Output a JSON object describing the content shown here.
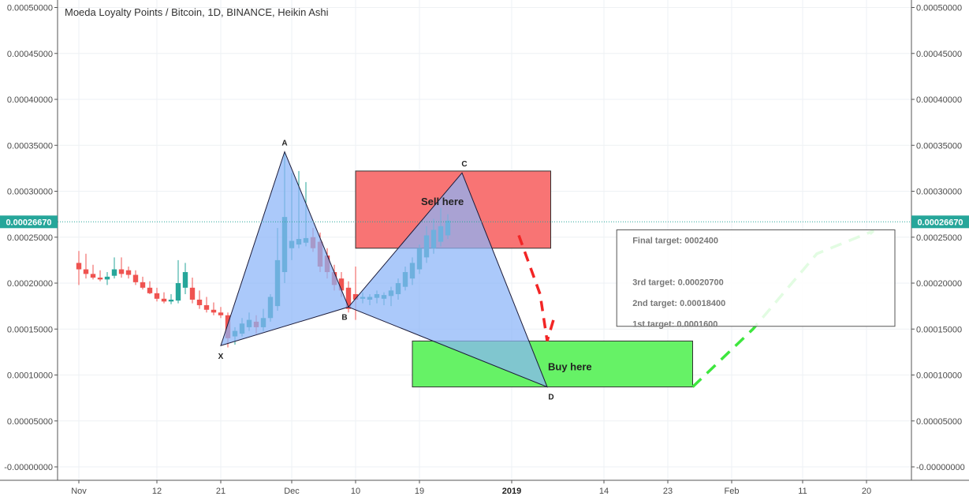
{
  "chart_data": {
    "type": "candlestick",
    "title": "Moeda Loyalty Points / Bitcoin, 1D, BINANCE, Heikin Ashi",
    "ylim": [
      -2e-07,
      0.0005
    ],
    "y_ticks": [
      "0.00050000",
      "0.00045000",
      "0.00040000",
      "0.00035000",
      "0.00030000",
      "0.00025000",
      "0.00020000",
      "0.00015000",
      "0.00010000",
      "0.00005000",
      "-0.00000000"
    ],
    "y_tick_values": [
      0.0005,
      0.00045,
      0.0004,
      0.00035,
      0.0003,
      0.00025,
      0.0002,
      0.00015,
      0.0001,
      5e-05,
      0
    ],
    "x_ticks": [
      {
        "label": "Nov",
        "day": 0,
        "bold": false
      },
      {
        "label": "12",
        "day": 11,
        "bold": false
      },
      {
        "label": "21",
        "day": 20,
        "bold": false
      },
      {
        "label": "Dec",
        "day": 30,
        "bold": false
      },
      {
        "label": "10",
        "day": 39,
        "bold": false
      },
      {
        "label": "19",
        "day": 48,
        "bold": false
      },
      {
        "label": "2019",
        "day": 61,
        "bold": true
      },
      {
        "label": "14",
        "day": 74,
        "bold": false
      },
      {
        "label": "23",
        "day": 83,
        "bold": false
      },
      {
        "label": "Feb",
        "day": 92,
        "bold": false
      },
      {
        "label": "11",
        "day": 102,
        "bold": false
      },
      {
        "label": "20",
        "day": 111,
        "bold": false
      }
    ],
    "current_price": {
      "label": "0.00026670",
      "value": 0.0002667,
      "color": "#26a69a"
    },
    "colors": {
      "up": "#26a69a",
      "down": "#ef5350",
      "pattern": "#8ab4f8",
      "sell_zone": "#f87474",
      "buy_zone": "#66f266",
      "red_arrow": "#f22525",
      "green_arrow": "#3ee63e"
    },
    "candles": [
      {
        "o": 0.000222,
        "h": 0.000235,
        "l": 0.000198,
        "c": 0.000215
      },
      {
        "o": 0.000215,
        "h": 0.000232,
        "l": 0.000205,
        "c": 0.00021
      },
      {
        "o": 0.00021,
        "h": 0.00022,
        "l": 0.000204,
        "c": 0.000206
      },
      {
        "o": 0.000206,
        "h": 0.000214,
        "l": 0.000202,
        "c": 0.000204
      },
      {
        "o": 0.000204,
        "h": 0.000212,
        "l": 0.000198,
        "c": 0.000207
      },
      {
        "o": 0.000208,
        "h": 0.000228,
        "l": 0.000205,
        "c": 0.000215
      },
      {
        "o": 0.000215,
        "h": 0.000228,
        "l": 0.000206,
        "c": 0.00021
      },
      {
        "o": 0.000214,
        "h": 0.000218,
        "l": 0.000205,
        "c": 0.000209
      },
      {
        "o": 0.000209,
        "h": 0.000214,
        "l": 0.000198,
        "c": 0.000201
      },
      {
        "o": 0.000201,
        "h": 0.000207,
        "l": 0.000193,
        "c": 0.000195
      },
      {
        "o": 0.000195,
        "h": 0.000202,
        "l": 0.000188,
        "c": 0.000189
      },
      {
        "o": 0.000189,
        "h": 0.000195,
        "l": 0.00018,
        "c": 0.000183
      },
      {
        "o": 0.000183,
        "h": 0.00019,
        "l": 0.000178,
        "c": 0.00018
      },
      {
        "o": 0.00018,
        "h": 0.000188,
        "l": 0.000177,
        "c": 0.000182
      },
      {
        "o": 0.000181,
        "h": 0.000225,
        "l": 0.000178,
        "c": 0.0002
      },
      {
        "o": 0.000195,
        "h": 0.000222,
        "l": 0.000188,
        "c": 0.000212
      },
      {
        "o": 0.000195,
        "h": 0.000206,
        "l": 0.000178,
        "c": 0.000182
      },
      {
        "o": 0.000182,
        "h": 0.000192,
        "l": 0.000172,
        "c": 0.000176
      },
      {
        "o": 0.000176,
        "h": 0.000185,
        "l": 0.000168,
        "c": 0.000171
      },
      {
        "o": 0.000171,
        "h": 0.000179,
        "l": 0.000165,
        "c": 0.000168
      },
      {
        "o": 0.000168,
        "h": 0.000174,
        "l": 0.000162,
        "c": 0.000165
      },
      {
        "o": 0.000165,
        "h": 0.000168,
        "l": 0.00013,
        "c": 0.00014
      },
      {
        "o": 0.000142,
        "h": 0.000152,
        "l": 0.000133,
        "c": 0.000148
      },
      {
        "o": 0.000145,
        "h": 0.000162,
        "l": 0.000142,
        "c": 0.000156
      },
      {
        "o": 0.000152,
        "h": 0.000168,
        "l": 0.000148,
        "c": 0.00016
      },
      {
        "o": 0.000158,
        "h": 0.000165,
        "l": 0.000145,
        "c": 0.000152
      },
      {
        "o": 0.000152,
        "h": 0.000172,
        "l": 0.000148,
        "c": 0.000162
      },
      {
        "o": 0.000162,
        "h": 0.000188,
        "l": 0.000158,
        "c": 0.000185
      },
      {
        "o": 0.000175,
        "h": 0.00026,
        "l": 0.00017,
        "c": 0.000225
      },
      {
        "o": 0.000212,
        "h": 0.000342,
        "l": 0.0002,
        "c": 0.000272
      },
      {
        "o": 0.000238,
        "h": 0.00032,
        "l": 0.000225,
        "c": 0.000246
      },
      {
        "o": 0.000242,
        "h": 0.000322,
        "l": 0.000238,
        "c": 0.000248
      },
      {
        "o": 0.000244,
        "h": 0.00031,
        "l": 0.00024,
        "c": 0.000249
      },
      {
        "o": 0.00025,
        "h": 0.00026,
        "l": 0.000234,
        "c": 0.000238
      },
      {
        "o": 0.000245,
        "h": 0.000255,
        "l": 0.000212,
        "c": 0.000218
      },
      {
        "o": 0.00023,
        "h": 0.000238,
        "l": 0.000205,
        "c": 0.000212
      },
      {
        "o": 0.000212,
        "h": 0.00022,
        "l": 0.000192,
        "c": 0.000198
      },
      {
        "o": 0.000205,
        "h": 0.000212,
        "l": 0.000185,
        "c": 0.000192
      },
      {
        "o": 0.000195,
        "h": 0.000202,
        "l": 0.000168,
        "c": 0.000172
      },
      {
        "o": 0.000188,
        "h": 0.000218,
        "l": 0.00016,
        "c": 0.000182
      },
      {
        "o": 0.000183,
        "h": 0.00019,
        "l": 0.000178,
        "c": 0.000185
      },
      {
        "o": 0.000182,
        "h": 0.000188,
        "l": 0.000176,
        "c": 0.000185
      },
      {
        "o": 0.000184,
        "h": 0.000192,
        "l": 0.000178,
        "c": 0.000188
      },
      {
        "o": 0.000183,
        "h": 0.00019,
        "l": 0.000176,
        "c": 0.000187
      },
      {
        "o": 0.000186,
        "h": 0.000196,
        "l": 0.000175,
        "c": 0.000192
      },
      {
        "o": 0.000188,
        "h": 0.000205,
        "l": 0.000182,
        "c": 0.0002
      },
      {
        "o": 0.000196,
        "h": 0.000218,
        "l": 0.000192,
        "c": 0.000212
      },
      {
        "o": 0.000205,
        "h": 0.000228,
        "l": 0.000198,
        "c": 0.000222
      },
      {
        "o": 0.000215,
        "h": 0.000242,
        "l": 0.00021,
        "c": 0.000238
      },
      {
        "o": 0.000228,
        "h": 0.000262,
        "l": 0.000222,
        "c": 0.000252
      },
      {
        "o": 0.000238,
        "h": 0.00027,
        "l": 0.000232,
        "c": 0.000258
      },
      {
        "o": 0.000245,
        "h": 0.000282,
        "l": 0.00024,
        "c": 0.000262
      },
      {
        "o": 0.000252,
        "h": 0.000275,
        "l": 0.000248,
        "c": 0.000268
      }
    ],
    "pattern_points": [
      {
        "label": "X",
        "day": 20,
        "price": 0.000132
      },
      {
        "label": "A",
        "day": 29,
        "price": 0.000343
      },
      {
        "label": "B",
        "day": 38,
        "price": 0.000174
      },
      {
        "label": "C",
        "day": 54,
        "price": 0.00032
      },
      {
        "label": "D",
        "day": 66,
        "price": 8.7e-05
      }
    ],
    "sell_zone": {
      "label": "Sell here",
      "x0": 39,
      "x1": 66.5,
      "y0": 0.000238,
      "y1": 0.000322
    },
    "buy_zone": {
      "label": "Buy here",
      "x0": 47,
      "x1": 86.5,
      "y0": 8.7e-05,
      "y1": 0.000137
    },
    "red_path": [
      [
        62,
        0.000252
      ],
      [
        65,
        0.000188
      ],
      [
        66,
        0.000137
      ],
      [
        67,
        0.000163
      ]
    ],
    "green_path": [
      [
        86.5,
        8.7e-05
      ],
      [
        95,
        0.00015
      ],
      [
        104,
        0.000232
      ],
      [
        112,
        0.000257
      ],
      [
        111,
        0.00025
      ]
    ],
    "targets_box": {
      "x0": 75.8,
      "x1": 115,
      "y0": 0.000153,
      "y1": 0.000258,
      "lines": [
        "Final target: 0002400",
        "",
        "3rd target: 0.00020700",
        "2nd target: 0.00018400",
        "1st target: 0.0001600"
      ]
    }
  }
}
